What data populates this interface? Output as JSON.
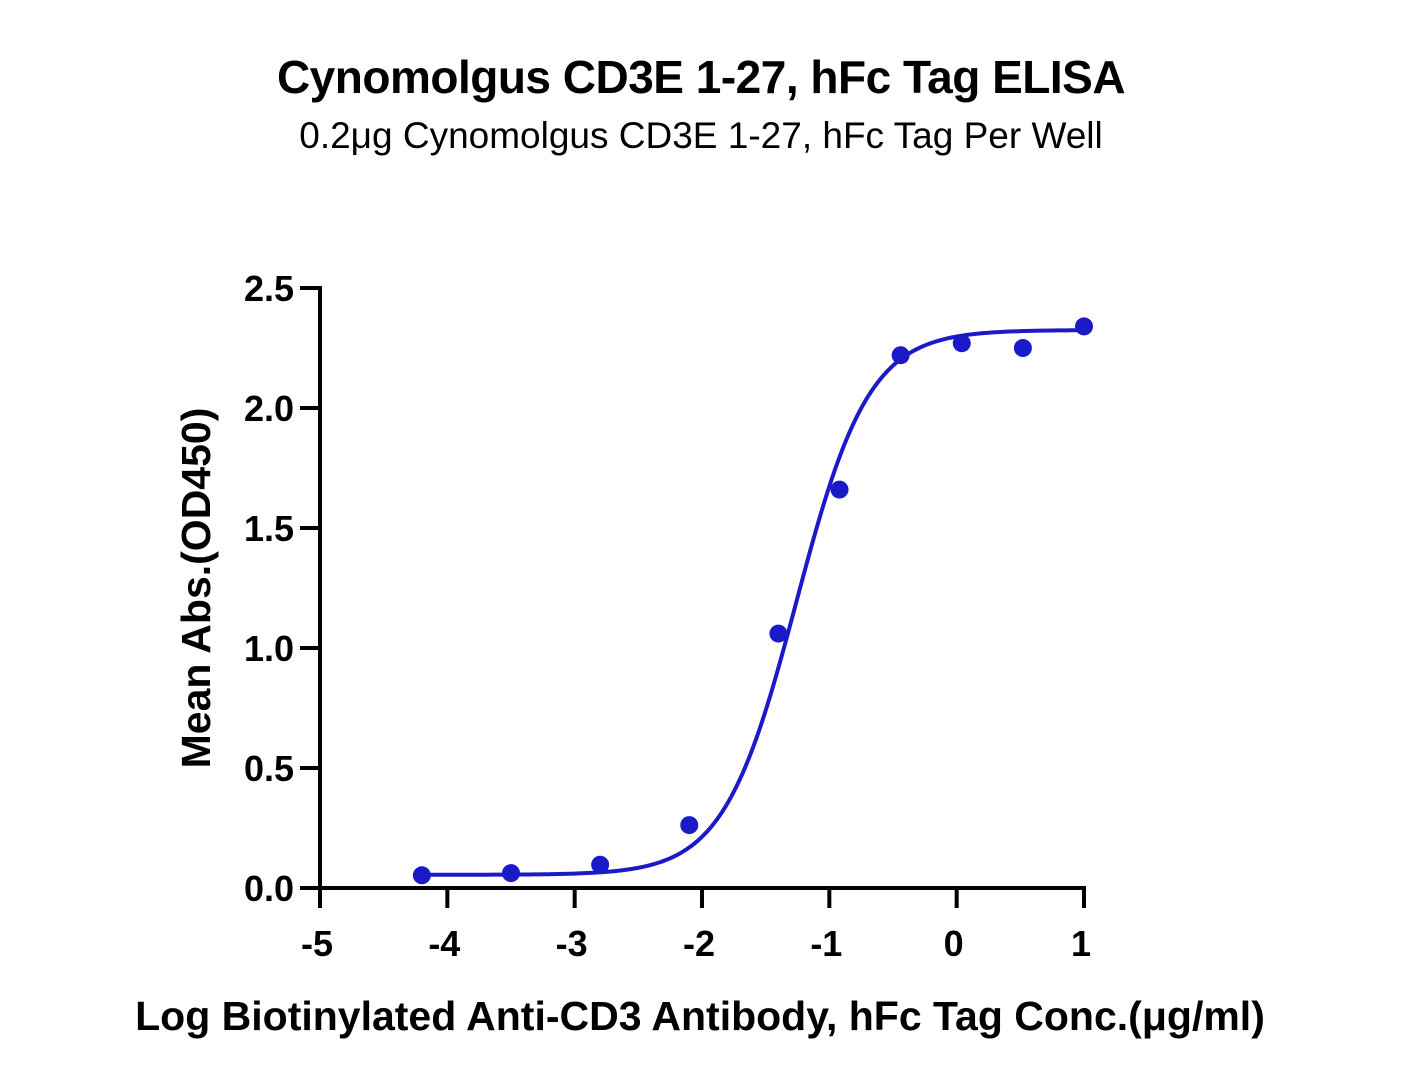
{
  "chart_data": {
    "type": "scatter",
    "title": "Cynomolgus CD3E 1-27, hFc Tag ELISA",
    "subtitle": "0.2μg Cynomolgus CD3E 1-27, hFc Tag Per Well",
    "xlabel": "Log Biotinylated Anti-CD3 Antibody, hFc Tag Conc.(μg/ml)",
    "ylabel": "Mean Abs.(OD450)",
    "xlim": [
      -5,
      1
    ],
    "ylim": [
      0,
      2.5
    ],
    "x_ticks": [
      "-5",
      "-4",
      "-3",
      "-2",
      "-1",
      "0",
      "1"
    ],
    "y_ticks": [
      "0.0",
      "0.5",
      "1.0",
      "1.5",
      "2.0",
      "2.5"
    ],
    "grid": false,
    "legend": "none",
    "series": [
      {
        "x": [
          -4.2,
          -3.5,
          -2.8,
          -2.1,
          -1.4,
          -0.92,
          -0.44,
          0.04,
          0.52,
          1.0
        ],
        "y": [
          0.053,
          0.062,
          0.097,
          0.262,
          1.06,
          1.66,
          2.22,
          2.27,
          2.25,
          2.34
        ],
        "color": "#1a1ac8",
        "fit": "four-parameter logistic"
      }
    ]
  }
}
